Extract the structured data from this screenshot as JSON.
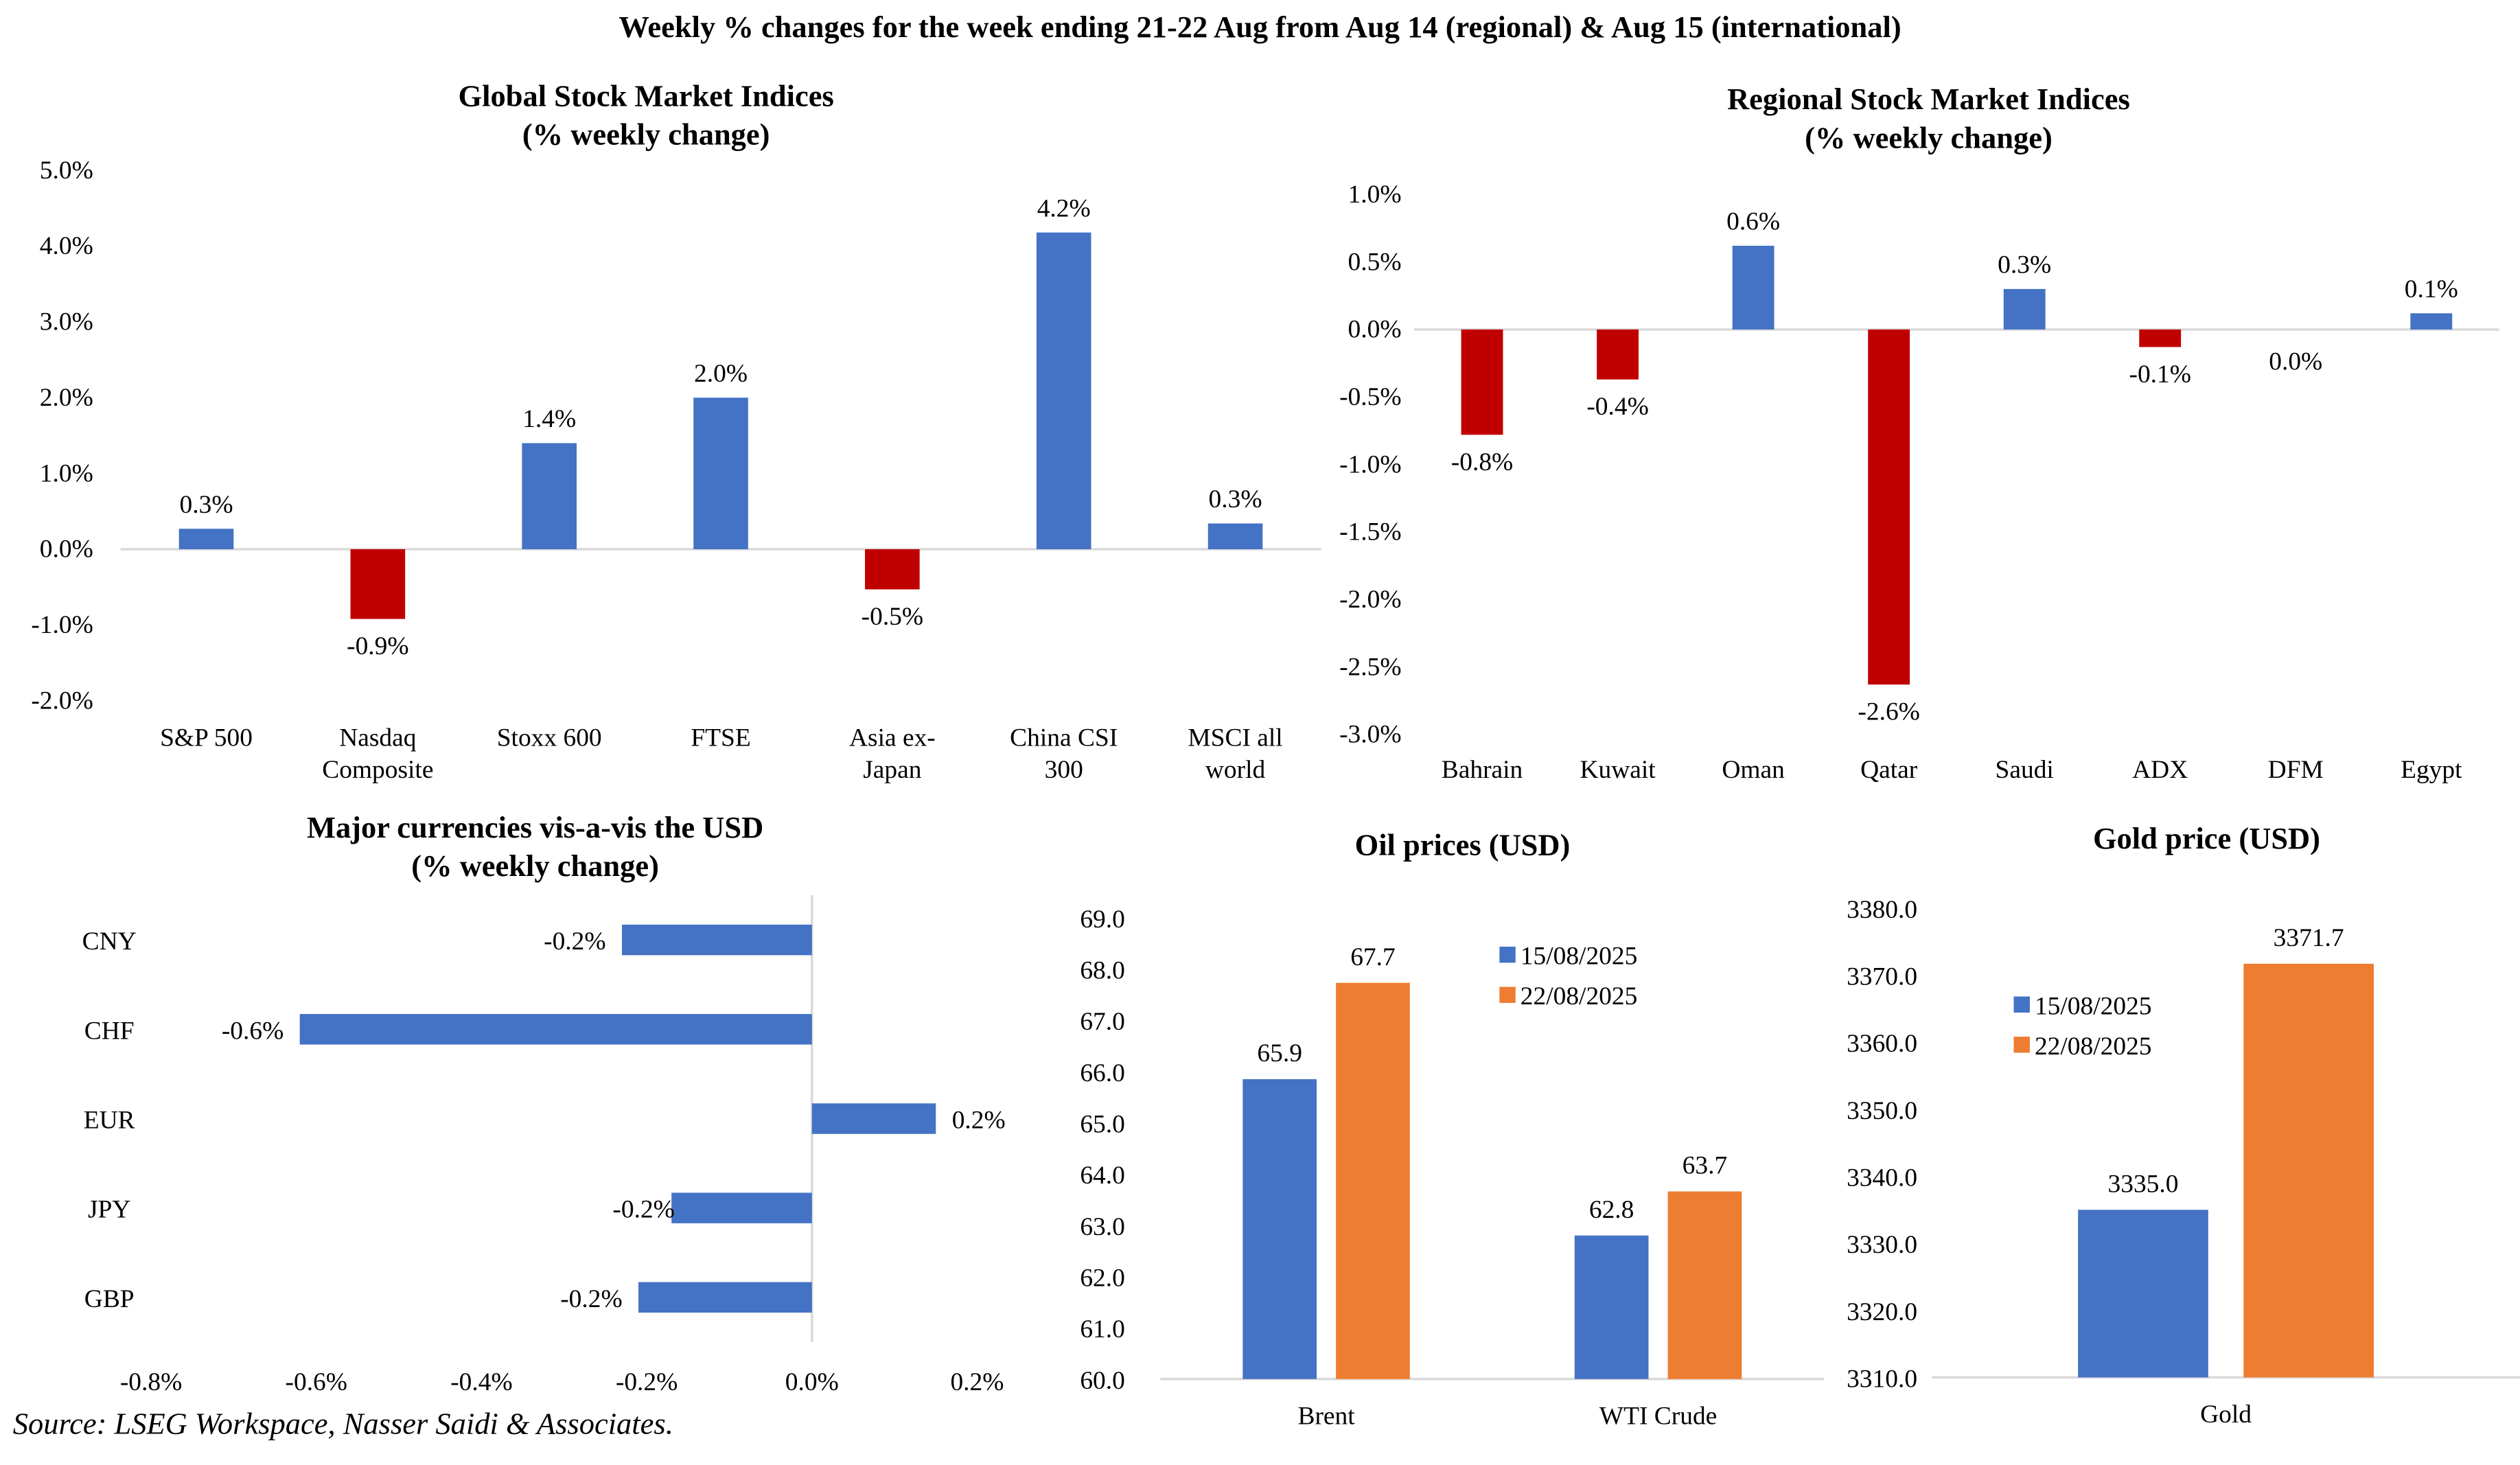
{
  "title": "Weekly % changes for the week ending 21-22 Aug from Aug 14 (regional) & Aug 15 (international)",
  "source": "Source: LSEG Workspace, Nasser Saidi & Associates.",
  "colors": {
    "positive": "#4472C4",
    "negative": "#C00000",
    "series1": "#4472C4",
    "series2": "#ED7D31",
    "axis": "#D9D9D9"
  },
  "chart_data": [
    {
      "id": "global",
      "type": "bar",
      "title": [
        "Global Stock Market Indices",
        "(% weekly change)"
      ],
      "categories": [
        [
          "S&P 500"
        ],
        [
          "Nasdaq",
          "Composite"
        ],
        [
          "Stoxx 600"
        ],
        [
          "FTSE"
        ],
        [
          "Asia ex-",
          "Japan"
        ],
        [
          "China CSI",
          "300"
        ],
        [
          "MSCI all",
          "world"
        ]
      ],
      "values": [
        0.27,
        -0.92,
        1.4,
        2.0,
        -0.53,
        4.18,
        0.34
      ],
      "data_labels": [
        "0.3%",
        "-0.9%",
        "1.4%",
        "2.0%",
        "-0.5%",
        "4.2%",
        "0.3%"
      ],
      "ylim": [
        -2,
        5
      ],
      "yticks": [
        "5.0%",
        "4.0%",
        "3.0%",
        "2.0%",
        "1.0%",
        "0.0%",
        "-1.0%",
        "-2.0%"
      ],
      "xlabel": "",
      "ylabel": "",
      "grid": false,
      "legend": "none"
    },
    {
      "id": "regional",
      "type": "bar",
      "title": [
        "Regional Stock Market Indices",
        "(% weekly change)"
      ],
      "categories": [
        [
          "Bahrain"
        ],
        [
          "Kuwait"
        ],
        [
          "Oman"
        ],
        [
          "Qatar"
        ],
        [
          "Saudi"
        ],
        [
          "ADX"
        ],
        [
          "DFM"
        ],
        [
          "Egypt"
        ]
      ],
      "values": [
        -0.78,
        -0.37,
        0.62,
        -2.63,
        0.3,
        -0.13,
        0.0,
        0.12
      ],
      "data_labels": [
        "-0.8%",
        "-0.4%",
        "0.6%",
        "-2.6%",
        "0.3%",
        "-0.1%",
        "0.0%",
        "0.1%"
      ],
      "ylim": [
        -3,
        1
      ],
      "yticks": [
        "1.0%",
        "0.5%",
        "0.0%",
        "-0.5%",
        "-1.0%",
        "-1.5%",
        "-2.0%",
        "-2.5%",
        "-3.0%"
      ],
      "xlabel": "",
      "ylabel": "",
      "grid": false,
      "legend": "none"
    },
    {
      "id": "currencies",
      "type": "bar",
      "orientation": "horizontal",
      "title": [
        "Major currencies vis-a-vis the USD",
        "(% weekly change)"
      ],
      "categories": [
        "CNY",
        "CHF",
        "EUR",
        "JPY",
        "GBP"
      ],
      "values": [
        -0.23,
        -0.62,
        0.15,
        -0.17,
        -0.21
      ],
      "data_labels": [
        "-0.2%",
        "-0.6%",
        "0.2%",
        "-0.2%",
        "-0.2%"
      ],
      "xlim": [
        -0.8,
        0.2
      ],
      "xticks": [
        "-0.8%",
        "-0.6%",
        "-0.4%",
        "-0.2%",
        "0.0%",
        "0.2%"
      ],
      "xlabel": "",
      "ylabel": "",
      "grid": false,
      "legend": "none"
    },
    {
      "id": "oil",
      "type": "bar",
      "title": [
        "Oil prices (USD)"
      ],
      "categories": [
        "Brent",
        "WTI Crude"
      ],
      "series": [
        {
          "name": "15/08/2025",
          "values": [
            65.85,
            62.8
          ],
          "data_labels": [
            "65.9",
            "62.8"
          ]
        },
        {
          "name": "22/08/2025",
          "values": [
            67.73,
            63.66
          ],
          "data_labels": [
            "67.7",
            "63.7"
          ]
        }
      ],
      "ylim": [
        60,
        69
      ],
      "yticks": [
        "69.0",
        "68.0",
        "67.0",
        "66.0",
        "65.0",
        "64.0",
        "63.0",
        "62.0",
        "61.0",
        "60.0"
      ],
      "xlabel": "",
      "ylabel": "",
      "grid": false,
      "legend": "top-right"
    },
    {
      "id": "gold",
      "type": "bar",
      "title": [
        "Gold price (USD)"
      ],
      "categories": [
        "Gold"
      ],
      "series": [
        {
          "name": "15/08/2025",
          "values": [
            3335.0
          ],
          "data_labels": [
            "3335.0"
          ]
        },
        {
          "name": "22/08/2025",
          "values": [
            3371.7
          ],
          "data_labels": [
            "3371.7"
          ]
        }
      ],
      "ylim": [
        3310,
        3380
      ],
      "yticks": [
        "3380.0",
        "3370.0",
        "3360.0",
        "3350.0",
        "3340.0",
        "3330.0",
        "3320.0",
        "3310.0"
      ],
      "xlabel": "",
      "ylabel": "",
      "grid": false,
      "legend": "top-left"
    }
  ]
}
